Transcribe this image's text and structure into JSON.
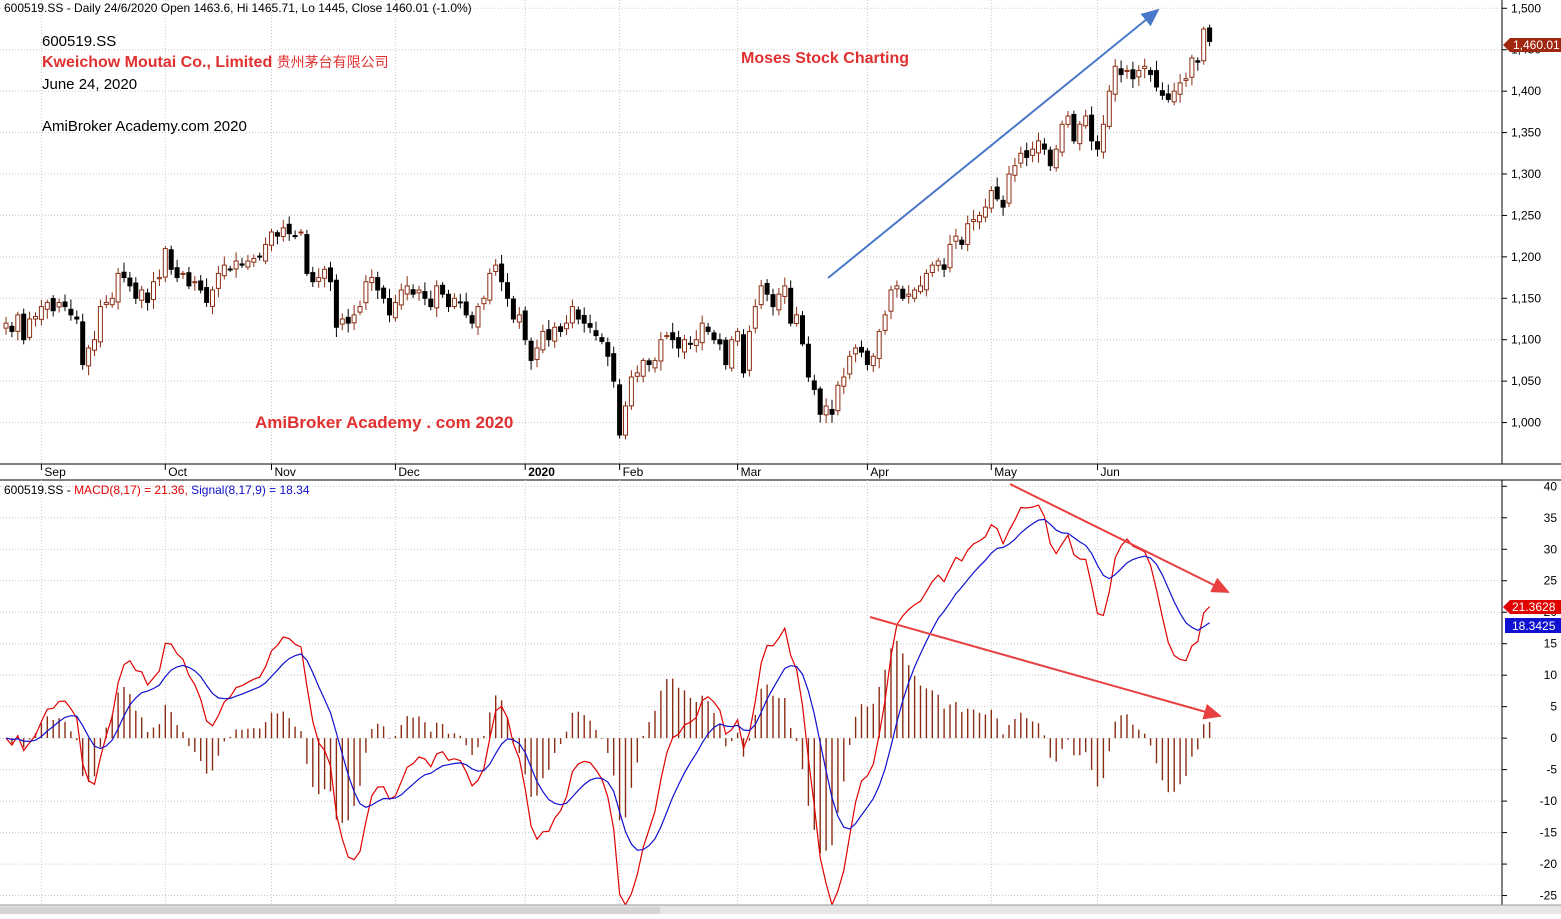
{
  "header": {
    "price": "600519.SS - Daily 24/6/2020 Open 1463.6, Hi 1465.71, Lo 1445, Close 1460.01 (-1.0%)",
    "macd": {
      "symbol": "600519.SS - ",
      "macd_part": "MACD(8,17) = 21.36,",
      "signal_part": " Signal(8,17,9) = 18.34"
    }
  },
  "annotations": {
    "symbol": "600519.SS",
    "company_en": "Kweichow Moutai Co., Limited",
    "company_cn": "贵州茅台有限公司",
    "date": "June 24, 2020",
    "credit": "AmiBroker Academy.com  2020",
    "brand": "Moses Stock Charting",
    "watermark": "AmiBroker Academy . com 2020"
  },
  "colors": {
    "up": "#8b2d13",
    "down": "#000000",
    "macd": "#e00000",
    "signal": "#1010d0",
    "hist": "#8b2d13",
    "arrow_blue": "#4a78c8",
    "arrow_red": "#e84040"
  },
  "badges": {
    "last_price": "1,460.01",
    "macd_value": "21.3628",
    "signal_value": "18.3425"
  },
  "chart_data": [
    {
      "type": "candlestick",
      "ylim": [
        950,
        1510
      ],
      "y_ticks": [
        1000,
        1050,
        1100,
        1150,
        1200,
        1250,
        1300,
        1350,
        1400,
        1450,
        1500
      ],
      "y_tick_labels": [
        "1,000",
        "1,050",
        "1,100",
        "1,150",
        "1,200",
        "1,250",
        "1,300",
        "1,350",
        "1,400",
        "1,450",
        "1,500"
      ],
      "x_labels": [
        {
          "label": "Sep",
          "bar": 6
        },
        {
          "label": "Oct",
          "bar": 27
        },
        {
          "label": "Nov",
          "bar": 45
        },
        {
          "label": "Dec",
          "bar": 66
        },
        {
          "label": "2020",
          "bar": 88
        },
        {
          "label": "Feb",
          "bar": 104
        },
        {
          "label": "Mar",
          "bar": 124
        },
        {
          "label": "Apr",
          "bar": 146
        },
        {
          "label": "May",
          "bar": 167
        },
        {
          "label": "Jun",
          "bar": 185
        }
      ],
      "closes": [
        1120,
        1110,
        1130,
        1100,
        1125,
        1128,
        1140,
        1145,
        1135,
        1145,
        1140,
        1130,
        1125,
        1070,
        1090,
        1100,
        1140,
        1145,
        1150,
        1180,
        1175,
        1165,
        1150,
        1160,
        1145,
        1170,
        1175,
        1210,
        1185,
        1175,
        1180,
        1165,
        1170,
        1160,
        1145,
        1160,
        1180,
        1190,
        1185,
        1195,
        1190,
        1195,
        1198,
        1200,
        1215,
        1230,
        1225,
        1235,
        1228,
        1225,
        1230,
        1180,
        1170,
        1175,
        1185,
        1170,
        1115,
        1125,
        1120,
        1130,
        1140,
        1170,
        1175,
        1160,
        1150,
        1130,
        1145,
        1160,
        1165,
        1155,
        1160,
        1150,
        1140,
        1165,
        1155,
        1140,
        1150,
        1145,
        1130,
        1120,
        1140,
        1150,
        1180,
        1190,
        1170,
        1150,
        1125,
        1130,
        1100,
        1075,
        1090,
        1110,
        1100,
        1115,
        1110,
        1120,
        1140,
        1125,
        1120,
        1115,
        1105,
        1098,
        1080,
        1050,
        985,
        1020,
        1055,
        1060,
        1075,
        1070,
        1075,
        1100,
        1105,
        1100,
        1090,
        1100,
        1095,
        1100,
        1120,
        1110,
        1100,
        1095,
        1070,
        1100,
        1110,
        1060,
        1110,
        1140,
        1165,
        1155,
        1140,
        1155,
        1165,
        1120,
        1130,
        1095,
        1055,
        1040,
        1010,
        1020,
        1010,
        1045,
        1055,
        1080,
        1090,
        1085,
        1070,
        1080,
        1110,
        1130,
        1160,
        1165,
        1150,
        1155,
        1160,
        1165,
        1180,
        1190,
        1195,
        1185,
        1215,
        1225,
        1215,
        1240,
        1245,
        1250,
        1260,
        1280,
        1270,
        1260,
        1300,
        1310,
        1325,
        1320,
        1330,
        1340,
        1330,
        1310,
        1330,
        1360,
        1370,
        1340,
        1360,
        1370,
        1340,
        1330,
        1360,
        1400,
        1430,
        1420,
        1425,
        1415,
        1425,
        1430,
        1420,
        1405,
        1395,
        1390,
        1400,
        1410,
        1415,
        1440,
        1435,
        1475,
        1460
      ],
      "last_price": 1460.01
    },
    {
      "type": "macd",
      "ylim": [
        -26.5,
        41
      ],
      "y_ticks": [
        -25,
        -20,
        -15,
        -10,
        -5,
        0,
        5,
        10,
        15,
        20,
        25,
        30,
        35,
        40
      ],
      "y_tick_labels": [
        "-25",
        "-20",
        "-15",
        "-10",
        "-5",
        "0",
        "5",
        "10",
        "15",
        "20",
        "25",
        "30",
        "35",
        "40"
      ],
      "params": {
        "fast": 8,
        "slow": 17,
        "signal": 9
      },
      "macd_value": 21.36,
      "signal_value": 18.34
    }
  ]
}
